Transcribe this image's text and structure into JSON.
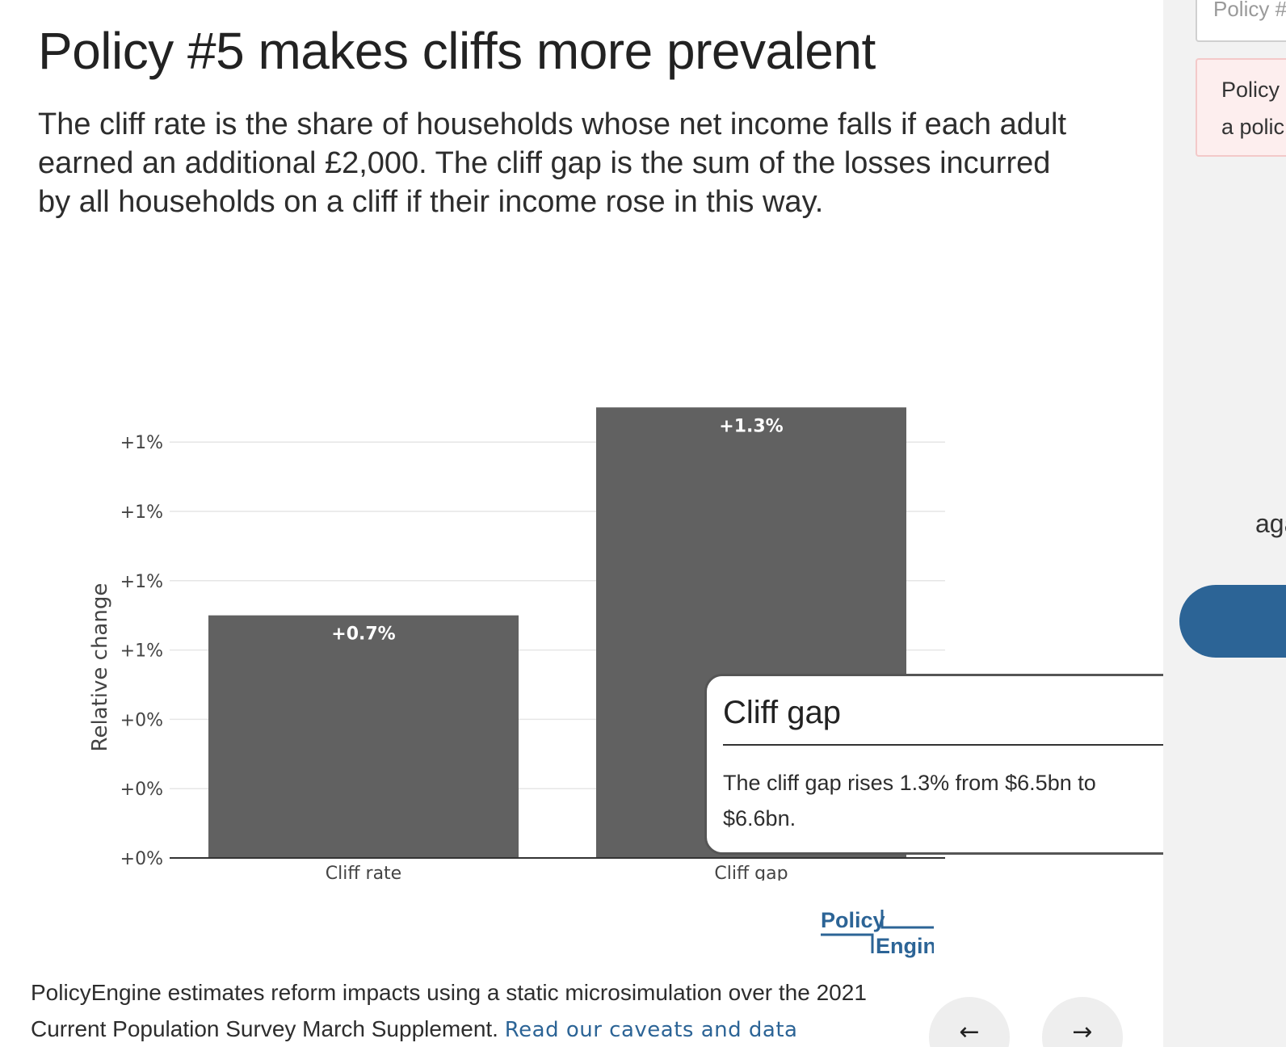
{
  "page": {
    "title": "Policy #5 makes cliffs more prevalent",
    "subtitle": "The cliff rate is the share of households whose net income falls if each adult earned an additional £2,000. The cliff gap is the sum of the losses incurred by all households on a cliff if their income rose in this way."
  },
  "chart_data": {
    "type": "bar",
    "categories": [
      "Cliff rate",
      "Cliff gap"
    ],
    "values": [
      0.7,
      1.3
    ],
    "data_labels": [
      "+0.7%",
      "+1.3%"
    ],
    "ylabel": "Relative change",
    "y_ticks": [
      0,
      0.2,
      0.4,
      0.6,
      0.8,
      1.0,
      1.2
    ],
    "y_tick_labels": [
      "+0%",
      "+0%",
      "+0%",
      "+1%",
      "+1%",
      "+1%",
      "+1%"
    ],
    "ylim": [
      0,
      1.31
    ],
    "grid": true,
    "bar_color": "#616161"
  },
  "tooltip": {
    "title": "Cliff gap",
    "body": "The cliff gap rises 1.3% from $6.5bn to $6.6bn."
  },
  "logo": {
    "text_top": "Policy",
    "text_bottom": "Engine",
    "color": "#2c6496"
  },
  "footer": {
    "text": "PolicyEngine estimates reform impacts using a static microsimulation over the 2021 Current Population Survey March Supplement.",
    "link": "Read our caveats and data"
  },
  "nav": {
    "prev_icon": "←",
    "next_icon": "→"
  },
  "sidebar": {
    "input_text": "Policy #",
    "alert_line1": "Policy",
    "alert_line2": "a polic",
    "fragment": "aga"
  },
  "colors": {
    "accent": "#2c6496",
    "bar": "#616161",
    "sidebar_bg": "#f2f2f2",
    "alert_bg": "#fdeeee"
  }
}
